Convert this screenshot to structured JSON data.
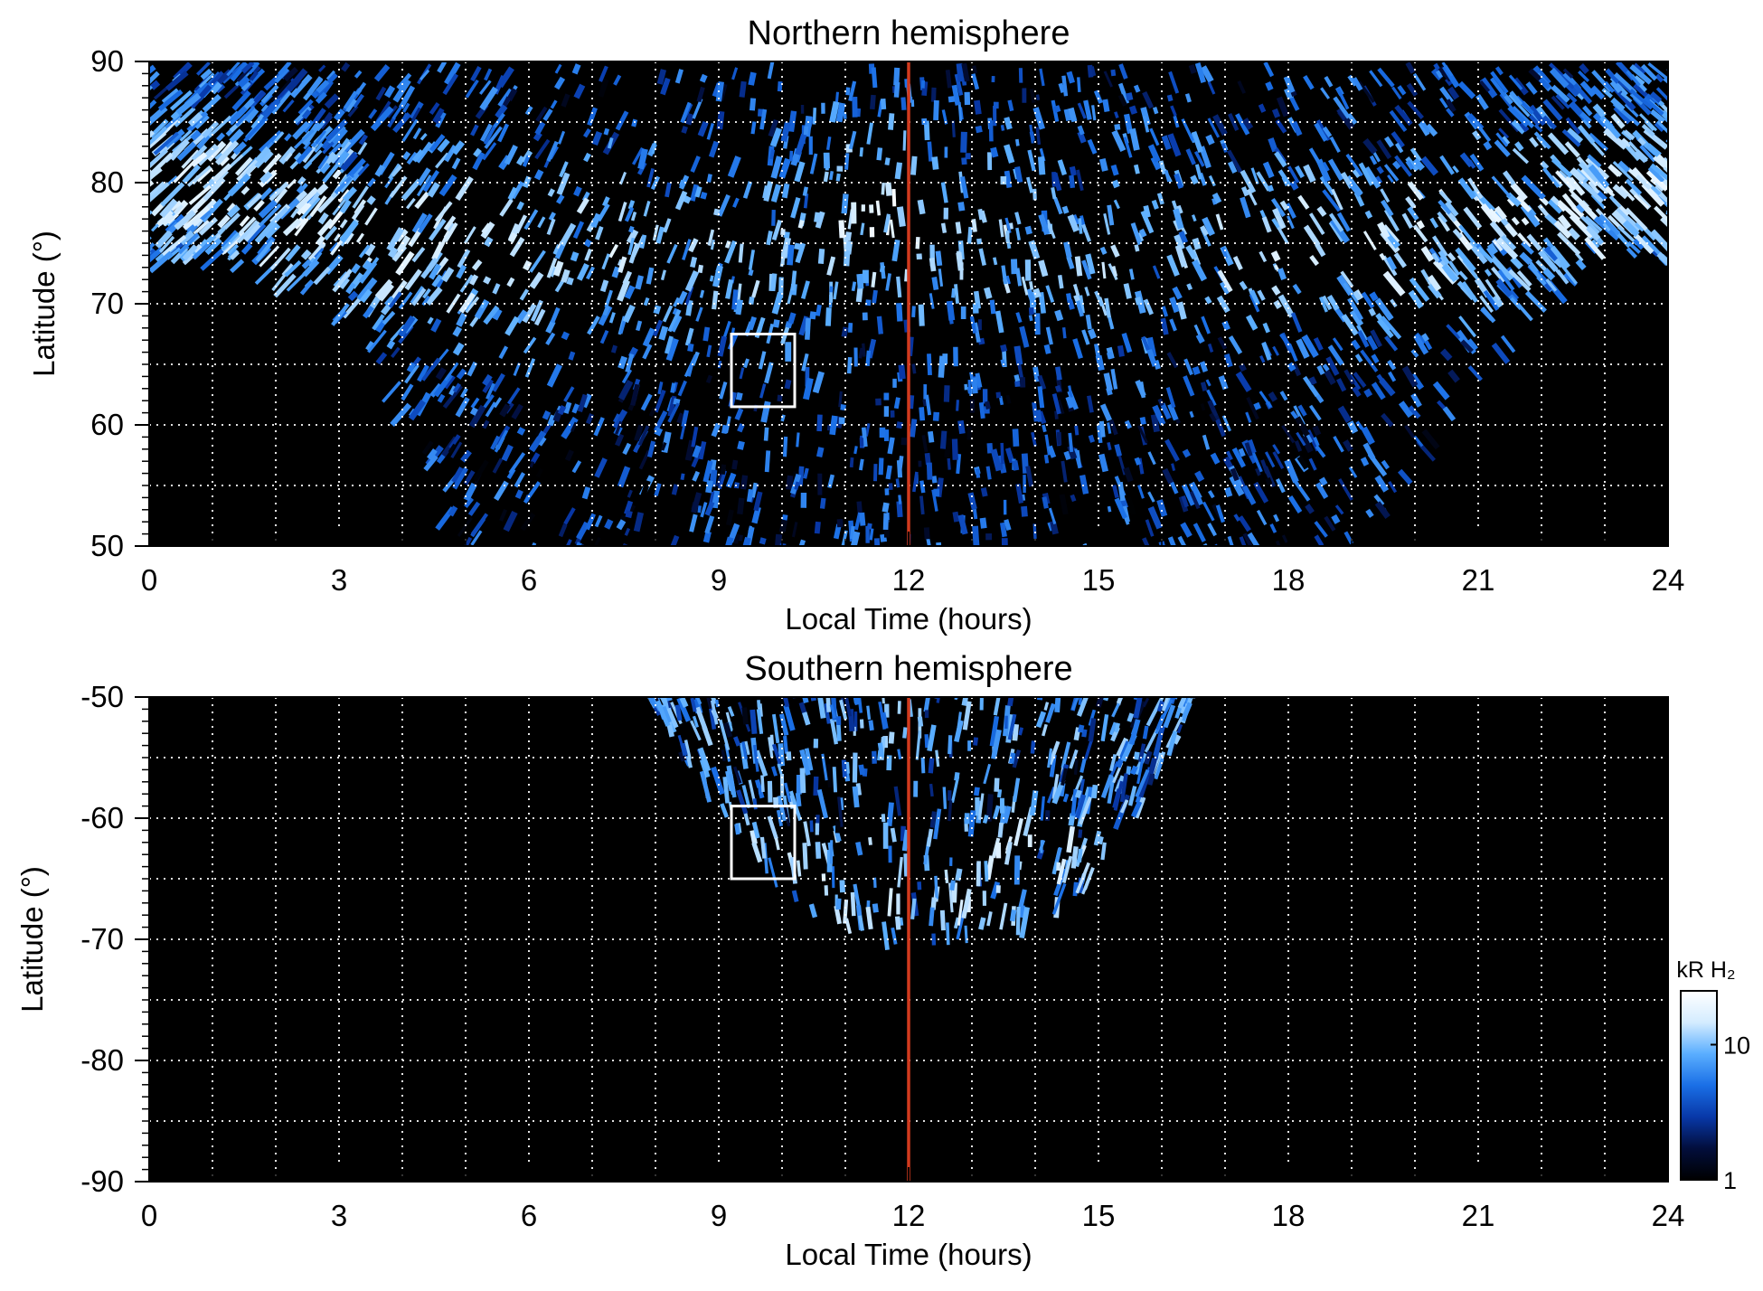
{
  "chart_data": [
    {
      "type": "heatmap",
      "title": "Northern hemisphere",
      "xlabel": "Local Time (hours)",
      "ylabel": "Latitude (°)",
      "xlim": [
        0,
        24
      ],
      "ylim": [
        50,
        90
      ],
      "xticks": [
        "0",
        "3",
        "6",
        "9",
        "12",
        "15",
        "18",
        "21",
        "24"
      ],
      "yticks": [
        "50",
        "60",
        "70",
        "80",
        "90"
      ],
      "grid": true,
      "grid_x_step": 1,
      "grid_y_step": 5,
      "reference_line_x": 12,
      "highlight_box": {
        "x": [
          9.2,
          10.2
        ],
        "y": [
          61.5,
          67.5
        ]
      },
      "coverage_boundary": {
        "x": [
          0,
          1,
          2,
          3,
          4,
          4.5,
          5,
          6,
          7,
          9,
          12,
          15,
          17,
          18.5,
          19,
          19.5,
          20,
          21,
          22,
          23,
          24
        ],
        "lower_lat": [
          73.5,
          74,
          73,
          70,
          63,
          57,
          50,
          50,
          50,
          50,
          50,
          50,
          50,
          50,
          50,
          53,
          58,
          65,
          71,
          74.5,
          73.5
        ]
      },
      "intensity_profile": {
        "x": [
          0,
          1,
          2,
          3,
          4,
          5,
          6,
          7,
          8,
          9,
          10,
          11,
          12,
          13,
          14,
          15,
          16,
          17,
          18,
          19,
          20,
          21,
          22,
          23,
          24
        ],
        "brightest_lat": [
          80,
          80,
          78.5,
          77,
          76,
          75.5,
          75,
          75,
          75,
          75,
          75,
          78,
          78,
          76,
          75,
          75,
          75,
          75,
          75,
          75,
          76,
          77,
          78.5,
          80,
          80
        ],
        "peak_brightness_kR": [
          14,
          14,
          13,
          13,
          12,
          13,
          12,
          12,
          10,
          9,
          9,
          16,
          17,
          10,
          9,
          9,
          9,
          10,
          11,
          12,
          13,
          13,
          13,
          14,
          14
        ]
      }
    },
    {
      "type": "heatmap",
      "title": "Southern hemisphere",
      "xlabel": "Local Time (hours)",
      "ylabel": "Latitude (°)",
      "xlim": [
        0,
        24
      ],
      "ylim": [
        -90,
        -50
      ],
      "xticks": [
        "0",
        "3",
        "6",
        "9",
        "12",
        "15",
        "18",
        "21",
        "24"
      ],
      "yticks": [
        "-50",
        "-60",
        "-70",
        "-80",
        "-90"
      ],
      "grid": true,
      "grid_x_step": 1,
      "grid_y_step": 5,
      "reference_line_x": 12,
      "highlight_box": {
        "x": [
          9.2,
          10.2
        ],
        "y": [
          -65,
          -59
        ]
      },
      "coverage_boundary": {
        "x": [
          7.9,
          8.5,
          9,
          9.5,
          10,
          10.5,
          11,
          11.5,
          12,
          12.5,
          13,
          13.5,
          14,
          14.5,
          15,
          15.5,
          16,
          16.5
        ],
        "edge_lat": [
          -50,
          -56,
          -60,
          -63.5,
          -66.5,
          -68.5,
          -69.5,
          -70.5,
          -72,
          -71.5,
          -71,
          -70.5,
          -69.5,
          -68,
          -65.5,
          -61.5,
          -56.5,
          -50
        ]
      }
    }
  ],
  "colorbar": {
    "label": "kR H₂",
    "ticks": [
      "1",
      "10"
    ],
    "range": [
      1,
      25
    ],
    "scale": "log",
    "colors": [
      "#000000",
      "#020e3c",
      "#0838a8",
      "#1a6fe6",
      "#5aaeff",
      "#d4ecff",
      "#ffffff"
    ]
  },
  "colors": {
    "reference_line": "#d23a1e",
    "grid": "#ffffff",
    "background": "#000000"
  }
}
